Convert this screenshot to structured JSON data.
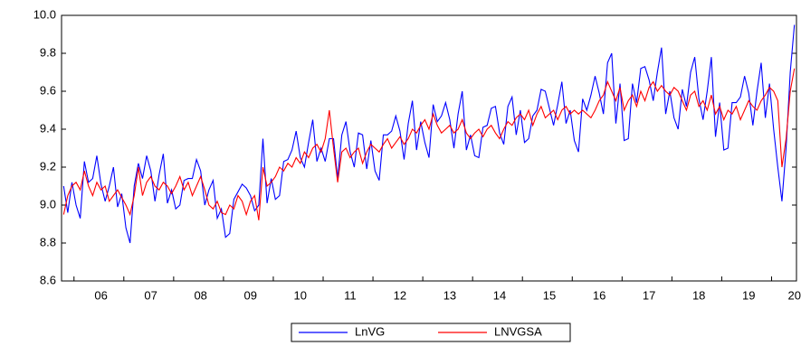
{
  "chart_data": {
    "type": "line",
    "legend": "bottom",
    "grid": false,
    "ylim": [
      8.6,
      10.0
    ],
    "yticks": [
      8.6,
      8.8,
      {
        "value": 9.0,
        "label": "9.0"
      },
      9.2,
      9.4,
      9.6,
      9.8,
      {
        "value": 10.0,
        "label": "10.0"
      }
    ],
    "categories": [
      null,
      null,
      null,
      null,
      null,
      null,
      null,
      null,
      null,
      "06",
      null,
      null,
      null,
      null,
      null,
      null,
      null,
      null,
      null,
      null,
      null,
      "07",
      null,
      null,
      null,
      null,
      null,
      null,
      null,
      null,
      null,
      null,
      null,
      "08",
      null,
      null,
      null,
      null,
      null,
      null,
      null,
      null,
      null,
      null,
      null,
      "09",
      null,
      null,
      null,
      null,
      null,
      null,
      null,
      null,
      null,
      null,
      null,
      "10",
      null,
      null,
      null,
      null,
      null,
      null,
      null,
      null,
      null,
      null,
      null,
      "11",
      null,
      null,
      null,
      null,
      null,
      null,
      null,
      null,
      null,
      null,
      null,
      "12",
      null,
      null,
      null,
      null,
      null,
      null,
      null,
      null,
      null,
      null,
      null,
      "13",
      null,
      null,
      null,
      null,
      null,
      null,
      null,
      null,
      null,
      null,
      null,
      "14",
      null,
      null,
      null,
      null,
      null,
      null,
      null,
      null,
      null,
      null,
      null,
      "15",
      null,
      null,
      null,
      null,
      null,
      null,
      null,
      null,
      null,
      null,
      null,
      "16",
      null,
      null,
      null,
      null,
      null,
      null,
      null,
      null,
      null,
      null,
      null,
      "17",
      null,
      null,
      null,
      null,
      null,
      null,
      null,
      null,
      null,
      null,
      null,
      "18",
      null,
      null,
      null,
      null,
      null,
      null,
      null,
      null,
      null,
      null,
      null,
      "19",
      null,
      null,
      null,
      null,
      null,
      null,
      null,
      null,
      null,
      null,
      "20"
    ],
    "series": [
      {
        "name": "LnVG",
        "color": "#0000ff",
        "values": [
          9.1,
          8.96,
          9.12,
          9.0,
          8.93,
          9.23,
          9.12,
          9.14,
          9.26,
          9.11,
          9.02,
          9.1,
          9.2,
          8.99,
          9.06,
          8.88,
          8.8,
          9.1,
          9.22,
          9.14,
          9.26,
          9.18,
          9.02,
          9.16,
          9.27,
          9.01,
          9.08,
          8.98,
          9.0,
          9.13,
          9.14,
          9.14,
          9.24,
          9.18,
          9.0,
          9.08,
          9.13,
          8.93,
          8.98,
          8.83,
          8.85,
          9.03,
          9.07,
          9.11,
          9.09,
          9.05,
          8.97,
          9.0,
          9.35,
          9.01,
          9.14,
          9.03,
          9.05,
          9.23,
          9.24,
          9.29,
          9.39,
          9.25,
          9.2,
          9.33,
          9.45,
          9.23,
          9.3,
          9.23,
          9.35,
          9.35,
          9.14,
          9.37,
          9.44,
          9.28,
          9.2,
          9.38,
          9.37,
          9.19,
          9.34,
          9.18,
          9.13,
          9.37,
          9.37,
          9.39,
          9.47,
          9.39,
          9.24,
          9.43,
          9.55,
          9.29,
          9.44,
          9.33,
          9.25,
          9.53,
          9.44,
          9.47,
          9.54,
          9.45,
          9.3,
          9.48,
          9.6,
          9.29,
          9.37,
          9.26,
          9.25,
          9.41,
          9.42,
          9.51,
          9.52,
          9.38,
          9.32,
          9.52,
          9.57,
          9.37,
          9.5,
          9.33,
          9.35,
          9.47,
          9.5,
          9.61,
          9.6,
          9.51,
          9.42,
          9.53,
          9.65,
          9.43,
          9.5,
          9.34,
          9.28,
          9.56,
          9.5,
          9.58,
          9.68,
          9.59,
          9.48,
          9.75,
          9.8,
          9.43,
          9.64,
          9.34,
          9.35,
          9.64,
          9.54,
          9.72,
          9.73,
          9.66,
          9.55,
          9.7,
          9.83,
          9.48,
          9.6,
          9.46,
          9.4,
          9.61,
          9.52,
          9.7,
          9.78,
          9.56,
          9.45,
          9.6,
          9.78,
          9.36,
          9.54,
          9.29,
          9.3,
          9.54,
          9.54,
          9.57,
          9.68,
          9.59,
          9.42,
          9.6,
          9.75,
          9.46,
          9.64,
          9.4,
          9.2,
          9.02,
          9.3,
          9.7,
          9.95
        ]
      },
      {
        "name": "LNVGSA",
        "color": "#ff0000",
        "values": [
          8.95,
          9.05,
          9.1,
          9.12,
          9.08,
          9.18,
          9.1,
          9.05,
          9.12,
          9.08,
          9.1,
          9.02,
          9.05,
          9.08,
          9.04,
          9.0,
          8.95,
          9.05,
          9.2,
          9.05,
          9.12,
          9.15,
          9.1,
          9.08,
          9.12,
          9.1,
          9.06,
          9.1,
          9.15,
          9.08,
          9.12,
          9.05,
          9.1,
          9.15,
          9.08,
          9.0,
          8.98,
          9.02,
          8.96,
          8.95,
          9.0,
          8.98,
          9.05,
          9.02,
          8.95,
          9.02,
          9.05,
          8.92,
          9.2,
          9.1,
          9.12,
          9.15,
          9.2,
          9.18,
          9.22,
          9.2,
          9.25,
          9.22,
          9.28,
          9.25,
          9.3,
          9.32,
          9.28,
          9.35,
          9.5,
          9.3,
          9.12,
          9.28,
          9.3,
          9.25,
          9.28,
          9.3,
          9.22,
          9.28,
          9.32,
          9.3,
          9.28,
          9.32,
          9.35,
          9.3,
          9.33,
          9.36,
          9.32,
          9.35,
          9.4,
          9.38,
          9.42,
          9.45,
          9.4,
          9.48,
          9.42,
          9.38,
          9.4,
          9.42,
          9.38,
          9.4,
          9.45,
          9.38,
          9.35,
          9.38,
          9.4,
          9.36,
          9.4,
          9.42,
          9.38,
          9.35,
          9.4,
          9.44,
          9.42,
          9.46,
          9.48,
          9.45,
          9.5,
          9.42,
          9.48,
          9.52,
          9.46,
          9.48,
          9.5,
          9.45,
          9.5,
          9.52,
          9.48,
          9.5,
          9.48,
          9.5,
          9.48,
          9.46,
          9.5,
          9.55,
          9.58,
          9.65,
          9.6,
          9.55,
          9.62,
          9.5,
          9.55,
          9.58,
          9.52,
          9.6,
          9.55,
          9.62,
          9.65,
          9.6,
          9.63,
          9.6,
          9.58,
          9.62,
          9.6,
          9.55,
          9.5,
          9.58,
          9.6,
          9.52,
          9.55,
          9.5,
          9.58,
          9.48,
          9.52,
          9.45,
          9.5,
          9.48,
          9.52,
          9.45,
          9.5,
          9.55,
          9.52,
          9.5,
          9.55,
          9.58,
          9.62,
          9.6,
          9.55,
          9.2,
          9.35,
          9.6,
          9.72
        ]
      }
    ]
  }
}
